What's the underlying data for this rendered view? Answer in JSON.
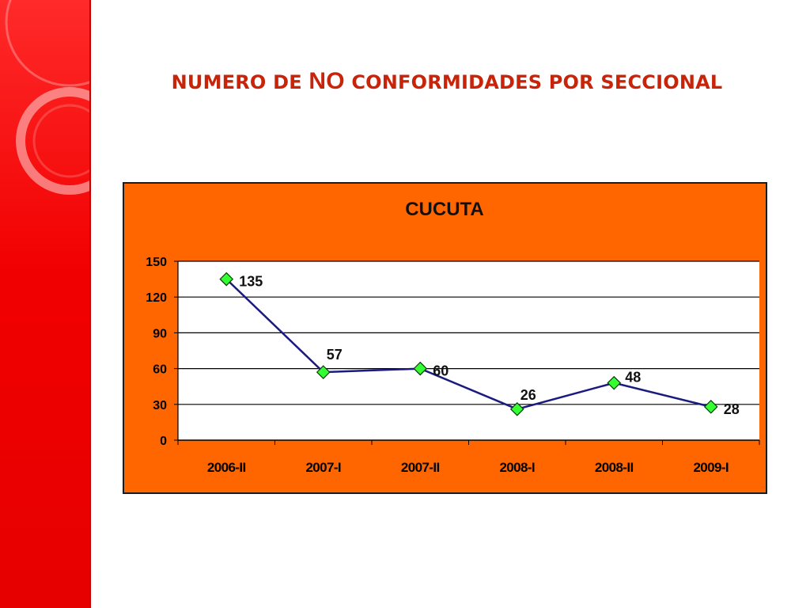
{
  "slide": {
    "title_part1": "NUMERO DE ",
    "title_part2": "NO",
    "title_part3": " CONFORMIDADES POR SECCIONAL"
  },
  "colors": {
    "side_band": "#f10000",
    "title": "#c8240a",
    "chart_background": "#ff6600",
    "plot_background": "#ffffff",
    "line": "#1a1a80",
    "marker": "#33ff33"
  },
  "chart_data": {
    "type": "line",
    "title": "CUCUTA",
    "categories": [
      "2006-II",
      "2007-I",
      "2007-II",
      "2008-I",
      "2008-II",
      "2009-I"
    ],
    "series": [
      {
        "values": [
          135,
          57,
          60,
          26,
          48,
          28
        ]
      }
    ],
    "ylim": [
      0,
      150
    ],
    "yticks": [
      0,
      30,
      60,
      90,
      120,
      150
    ],
    "xlabel": "",
    "ylabel": "",
    "grid": true,
    "legend": "none",
    "data_labels": true
  }
}
